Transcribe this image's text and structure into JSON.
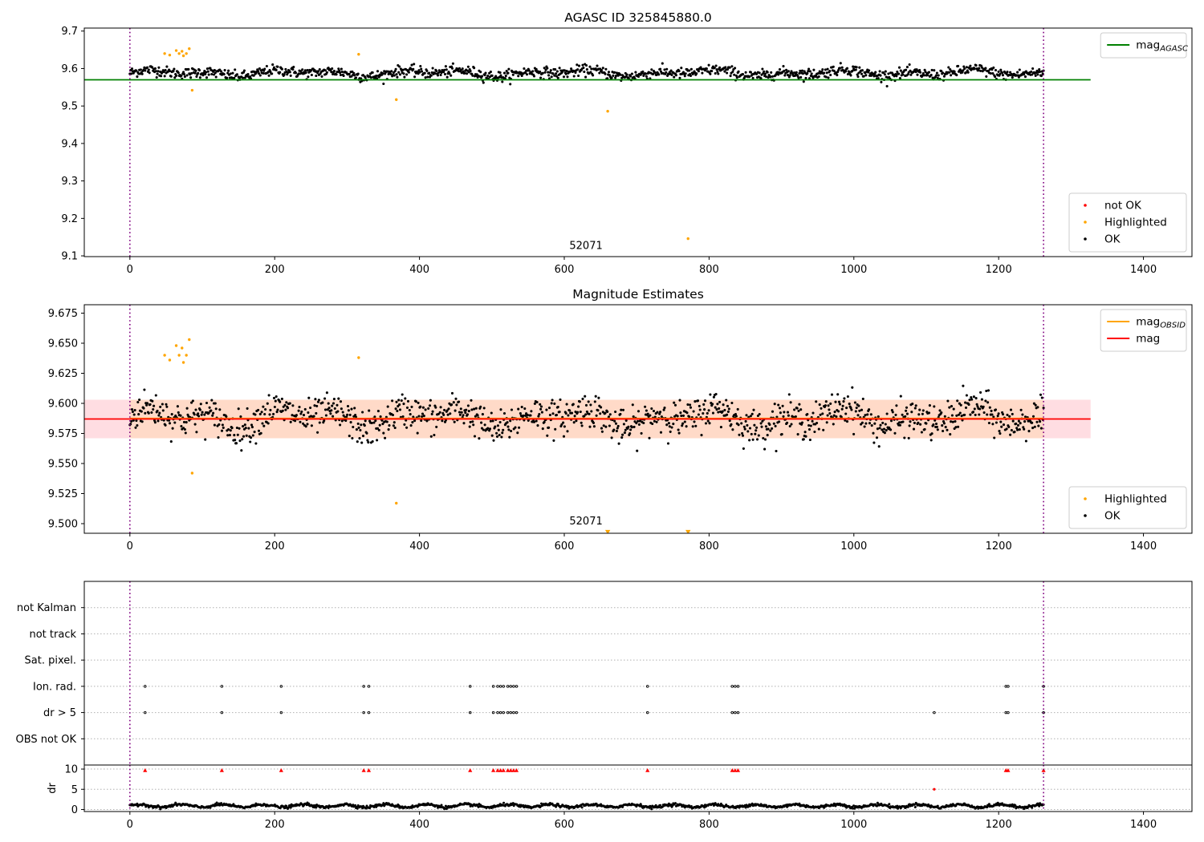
{
  "chart_data": [
    {
      "type": "scatter",
      "title": "AGASC ID 325845880.0",
      "xlim": [
        -63,
        1467
      ],
      "ylim": [
        9.098,
        9.708
      ],
      "xticks": [
        0,
        200,
        400,
        600,
        800,
        1000,
        1200,
        1400
      ],
      "yticks": [
        9.1,
        9.2,
        9.3,
        9.4,
        9.5,
        9.6,
        9.7
      ],
      "x_decimals": 0,
      "y_decimals": 1,
      "vlines": [
        0,
        1262
      ],
      "hlines": [
        {
          "name": "mag_AGASC",
          "y": 9.57,
          "x0": -63,
          "x1": 1327,
          "color": "#008000"
        }
      ],
      "annotation": {
        "text": "52071",
        "x": 630,
        "y": 9.118
      },
      "legends": [
        {
          "position": "top-right",
          "entries": [
            {
              "label": "mag",
              "sub": "AGASC",
              "kind": "line",
              "color": "#008000"
            }
          ]
        },
        {
          "position": "bottom-right",
          "entries": [
            {
              "label": "not OK",
              "kind": "dot",
              "color": "#ff0000"
            },
            {
              "label": "Highlighted",
              "kind": "dot",
              "color": "#ffa500"
            },
            {
              "label": "OK",
              "kind": "dot",
              "color": "#000000"
            }
          ]
        }
      ],
      "ok_series": {
        "color": "#000000",
        "n": 1262,
        "x_end": 1262,
        "center": 9.588,
        "amplitude": 0.01,
        "spread": 0.013,
        "min": 9.545,
        "max": 9.632
      },
      "highlighted_points": {
        "color": "#ffa500",
        "x": [
          48,
          55,
          64,
          68,
          72,
          74,
          78,
          82,
          86,
          316,
          368,
          660,
          771
        ],
        "y": [
          9.64,
          9.636,
          9.648,
          9.64,
          9.646,
          9.634,
          9.64,
          9.653,
          9.542,
          9.638,
          9.517,
          9.486,
          9.146
        ]
      }
    },
    {
      "type": "scatter",
      "title": "Magnitude Estimates",
      "xlim": [
        -63,
        1467
      ],
      "ylim": [
        9.492,
        9.682
      ],
      "xticks": [
        0,
        200,
        400,
        600,
        800,
        1000,
        1200,
        1400
      ],
      "yticks": [
        9.5,
        9.525,
        9.55,
        9.575,
        9.6,
        9.625,
        9.65,
        9.675
      ],
      "x_decimals": 0,
      "y_decimals": 3,
      "vlines": [
        0,
        1262
      ],
      "bands": [
        {
          "x0": -63,
          "x1": 1327,
          "y0": 9.571,
          "y1": 9.603,
          "color": "#ffdde2"
        },
        {
          "x0": 0,
          "x1": 1262,
          "y0": 9.571,
          "y1": 9.603,
          "color": "#ffdac8"
        }
      ],
      "hlines": [
        {
          "name": "mag_OBSID",
          "y": 9.5875,
          "x0": 0,
          "x1": 1262,
          "color": "#ffa500"
        },
        {
          "name": "mag",
          "y": 9.587,
          "x0": -63,
          "x1": 1327,
          "color": "#ff0000"
        }
      ],
      "annotation": {
        "text": "52071",
        "x": 630,
        "y": 9.4995
      },
      "legends": [
        {
          "position": "top-right",
          "entries": [
            {
              "label": "mag",
              "sub": "OBSID",
              "kind": "line",
              "color": "#ffa500"
            },
            {
              "label": "mag",
              "kind": "line",
              "color": "#ff0000"
            }
          ]
        },
        {
          "position": "bottom-right",
          "entries": [
            {
              "label": "Highlighted",
              "kind": "dot",
              "color": "#ffa500"
            },
            {
              "label": "OK",
              "kind": "dot",
              "color": "#000000"
            }
          ]
        }
      ],
      "ok_series": {
        "color": "#000000",
        "n": 1262,
        "x_end": 1262,
        "center": 9.588,
        "amplitude": 0.01,
        "spread": 0.013,
        "min": 9.545,
        "max": 9.632
      },
      "highlighted_points": {
        "color": "#ffa500",
        "x": [
          48,
          55,
          64,
          68,
          72,
          74,
          78,
          82,
          86,
          316,
          368
        ],
        "y": [
          9.64,
          9.636,
          9.648,
          9.64,
          9.646,
          9.634,
          9.64,
          9.653,
          9.542,
          9.638,
          9.517
        ]
      },
      "out_of_range_markers": {
        "color": "#ffa500",
        "x": [
          660,
          771
        ],
        "y": 9.493
      }
    },
    {
      "type": "scatter",
      "title": "",
      "xlim": [
        -63,
        1467
      ],
      "ylim": [
        0,
        7
      ],
      "yticks": [],
      "vlines": [
        0,
        1262
      ],
      "categories": [
        "OBS not OK",
        "dr > 5",
        "Ion. rad.",
        "Sat. pixel.",
        "not track",
        "not Kalman"
      ],
      "flag_rows": [
        {
          "category": "dr > 5",
          "level": 2,
          "x": [
            21,
            127,
            209,
            323,
            330,
            470,
            502,
            508,
            512,
            516,
            522,
            526,
            530,
            534,
            715,
            832,
            836,
            840,
            1111,
            1210,
            1213,
            1262
          ]
        },
        {
          "category": "Ion. rad.",
          "level": 3,
          "x": [
            21,
            127,
            209,
            323,
            330,
            470,
            502,
            508,
            512,
            516,
            522,
            526,
            530,
            534,
            715,
            832,
            836,
            840,
            1210,
            1213,
            1262
          ]
        }
      ]
    },
    {
      "type": "scatter",
      "title": "",
      "ylabel": "dr",
      "xlim": [
        -63,
        1467
      ],
      "ylim": [
        -0.5,
        11
      ],
      "xticks": [
        0,
        200,
        400,
        600,
        800,
        1000,
        1200,
        1400
      ],
      "yticks": [
        0,
        5,
        10
      ],
      "x_decimals": 0,
      "y_decimals": 0,
      "vlines": [
        0,
        1262
      ],
      "dr_series": {
        "color": "#000000",
        "n": 1262,
        "x_end": 1262,
        "center": 0.9,
        "amplitude": 0.35,
        "spread": 0.18
      },
      "clipped_markers": {
        "color": "#ff0000",
        "y": 9.7,
        "x": [
          21,
          127,
          209,
          323,
          330,
          470,
          502,
          508,
          512,
          516,
          522,
          526,
          530,
          534,
          715,
          832,
          836,
          840,
          1210,
          1213,
          1262
        ]
      },
      "extra_points": {
        "color": "#ff0000",
        "x": [
          1111
        ],
        "y": [
          5.0
        ]
      }
    }
  ]
}
